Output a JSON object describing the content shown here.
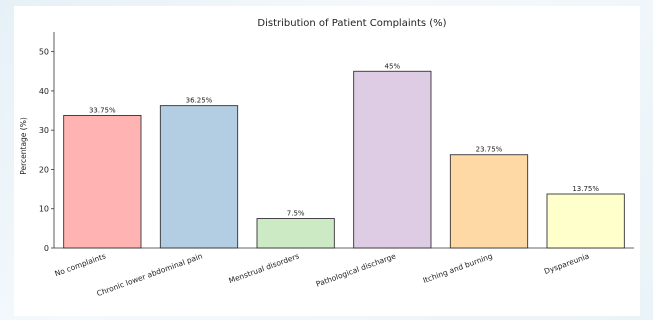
{
  "chart_data": {
    "type": "bar",
    "title": "Distribution of Patient Complaints (%)",
    "xlabel": "",
    "ylabel": "Percentage (%)",
    "ylim": [
      0,
      55
    ],
    "yticks": [
      0,
      10,
      20,
      30,
      40,
      50
    ],
    "grid": false,
    "categories": [
      "No complaints",
      "Chronic lower abdominal pain",
      "Menstrual disorders",
      "Pathological discharge",
      "Itching and burning",
      "Dyspareunia"
    ],
    "values": [
      33.75,
      36.25,
      7.5,
      45,
      23.75,
      13.75
    ],
    "value_labels": [
      "33.75%",
      "36.25%",
      "7.5%",
      "45%",
      "23.75%",
      "13.75%"
    ],
    "colors": [
      "#ffb3b3",
      "#b3cde3",
      "#ccebc5",
      "#decbe4",
      "#fed9a6",
      "#ffffcc"
    ],
    "edge_color": "#333333"
  }
}
